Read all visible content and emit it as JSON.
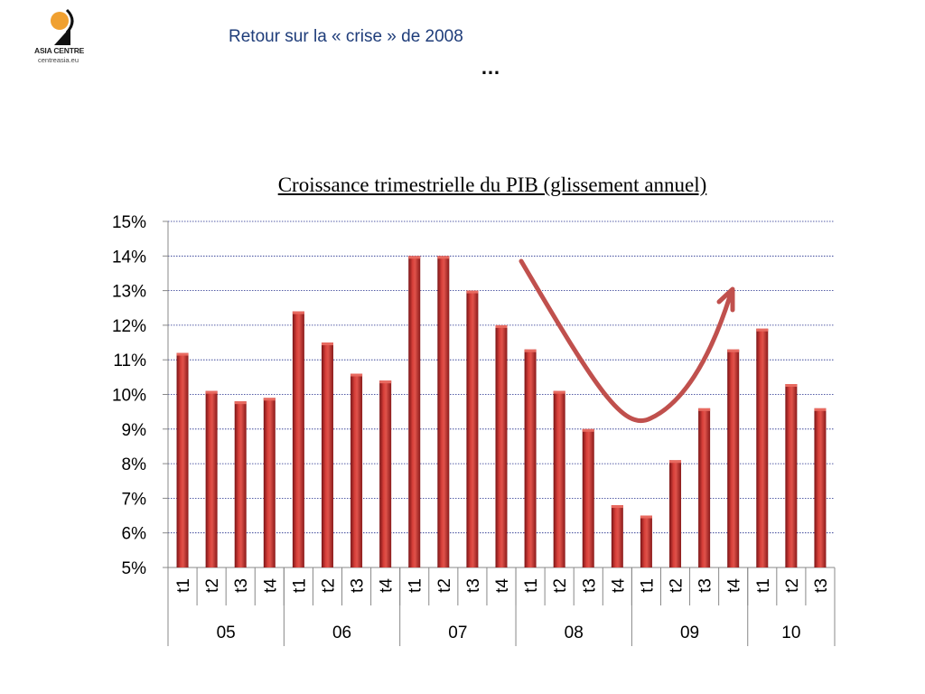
{
  "header": {
    "logo": {
      "name": "ASIA CENTRE",
      "url": "centreasia.eu"
    },
    "title": "Retour sur la « crise » de 2008",
    "ellipsis": "…"
  },
  "colors": {
    "bar": "#c0282a",
    "bar_dark": "#7a1416",
    "arrow": "#c0504d",
    "grid": "#1f2a8a",
    "title_blue": "#1f3d7a",
    "logo_orange": "#f0a030"
  },
  "chart_data": {
    "type": "bar",
    "title": "Croissance trimestrielle du PIB (glissement annuel)",
    "xlabel": "",
    "ylabel": "",
    "ylim": [
      5,
      15
    ],
    "y_ticks": [
      "5%",
      "6%",
      "7%",
      "8%",
      "9%",
      "10%",
      "11%",
      "12%",
      "13%",
      "14%",
      "15%"
    ],
    "grid": "horizontal dotted",
    "legend": "none",
    "categories": [
      "t1",
      "t2",
      "t3",
      "t4",
      "t1",
      "t2",
      "t3",
      "t4",
      "t1",
      "t2",
      "t3",
      "t4",
      "t1",
      "t2",
      "t3",
      "t4",
      "t1",
      "t2",
      "t3",
      "t4",
      "t1",
      "t2",
      "t3"
    ],
    "groups": [
      {
        "label": "05",
        "count": 4
      },
      {
        "label": "06",
        "count": 4
      },
      {
        "label": "07",
        "count": 4
      },
      {
        "label": "08",
        "count": 4
      },
      {
        "label": "09",
        "count": 4
      },
      {
        "label": "10",
        "count": 3
      }
    ],
    "values": [
      11.2,
      10.1,
      9.8,
      9.9,
      12.4,
      11.5,
      10.6,
      10.4,
      14.0,
      14.0,
      13.0,
      12.0,
      11.3,
      10.1,
      9.0,
      6.8,
      6.5,
      8.1,
      9.6,
      11.3,
      11.9,
      10.3,
      9.6
    ],
    "annotation": "red curved arrow: fall from 2008 to a trough at 2009 t1, then rise"
  }
}
